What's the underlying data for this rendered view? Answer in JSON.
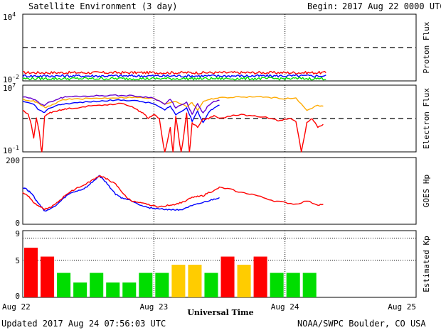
{
  "header": {
    "title": "Satellite Environment (3 day)",
    "begin_label": "Begin:",
    "begin_value": "2017 Aug 22 0000 UTC"
  },
  "footer": {
    "updated": "Updated 2017 Aug 24 07:56:03 UTC",
    "credit": "NOAA/SWPC Boulder, CO USA"
  },
  "colors": {
    "red": "#ff0000",
    "blue": "#0000ff",
    "green": "#00dd00",
    "orange": "#ffaa00",
    "purple": "#6600cc",
    "yellow": "#ffcc00"
  },
  "chart_data": {
    "type": "line",
    "xlabel": "Universal Time",
    "x_ticks": [
      "Aug 22",
      "Aug 23",
      "Aug 24",
      "Aug 25"
    ],
    "x_units": "hours since 2017 Aug 22 0000 UTC",
    "xlim": [
      0,
      72
    ],
    "panels": [
      {
        "name": "proton-flux",
        "ylabel": "Proton Flux",
        "scale": "log",
        "ylim_exp": [
          -2,
          4
        ],
        "y_ticks": [
          {
            "base": "10",
            "exp": "4"
          },
          {
            "base": "10",
            "exp": "-2"
          }
        ],
        "threshold": 10,
        "series": [
          {
            "color": "red",
            "level": 0.055,
            "noise": 0.12,
            "end": 55.5
          },
          {
            "color": "blue",
            "level": 0.028,
            "noise": 0.12,
            "end": 55.5
          },
          {
            "color": "green",
            "level": 0.016,
            "noise": 0.12,
            "end": 55.5
          }
        ]
      },
      {
        "name": "electron-flux",
        "ylabel": "Electron Flux",
        "scale": "log",
        "ylim_exp": [
          -1,
          7
        ],
        "y_ticks": [
          {
            "base": "10",
            "exp": "7"
          },
          {
            "base": "10",
            "exp": "-1"
          }
        ],
        "threshold": 1000,
        "series": [
          {
            "color": "orange",
            "x": [
              0,
              2,
              3,
              4,
              5,
              7,
              8,
              10,
              12,
              14,
              16,
              18,
              20,
              22,
              24,
              26,
              28,
              30,
              31,
              32,
              33,
              34,
              35,
              36,
              38,
              40,
              42,
              44,
              46,
              48,
              50,
              52,
              54,
              55
            ],
            "y": [
              200000,
              120000,
              60000,
              20000,
              30000,
              150000,
              200000,
              220000,
              250000,
              270000,
              300000,
              320000,
              350000,
              300000,
              250000,
              60000,
              120000,
              30000,
              80000,
              10000,
              100000,
              200000,
              250000,
              300000,
              350000,
              380000,
              400000,
              380000,
              300000,
              250000,
              260000,
              10000,
              40000,
              30000
            ]
          },
          {
            "color": "purple",
            "x": [
              0,
              2,
              3,
              4,
              5,
              7,
              8,
              10,
              12,
              14,
              16,
              18,
              20,
              22,
              24,
              26,
              27,
              28,
              30,
              31,
              32,
              33,
              34,
              35,
              36
            ],
            "y": [
              400000,
              200000,
              80000,
              40000,
              100000,
              300000,
              400000,
              450000,
              500000,
              550000,
              600000,
              580000,
              550000,
              400000,
              300000,
              50000,
              200000,
              20000,
              80000,
              3000,
              60000,
              4000,
              40000,
              100000,
              150000
            ]
          },
          {
            "color": "blue",
            "x": [
              0,
              2,
              3,
              4,
              5,
              7,
              8,
              10,
              12,
              14,
              16,
              18,
              20,
              22,
              24,
              26,
              27,
              28,
              30,
              31,
              32,
              33,
              34,
              35,
              36
            ],
            "y": [
              100000,
              50000,
              10000,
              5000,
              20000,
              50000,
              60000,
              80000,
              100000,
              120000,
              150000,
              160000,
              150000,
              100000,
              60000,
              10000,
              30000,
              3000,
              20000,
              500,
              8000,
              300,
              5000,
              20000,
              40000
            ]
          },
          {
            "color": "red",
            "x": [
              0,
              1,
              1.5,
              2,
              2.5,
              3,
              3.5,
              4,
              5,
              6,
              7,
              8,
              10,
              12,
              14,
              16,
              18,
              20,
              21,
              22,
              23,
              24,
              25,
              26,
              27,
              27.5,
              28,
              29,
              30,
              30.5,
              31,
              32,
              33,
              34,
              35,
              36,
              38,
              40,
              42,
              44,
              46,
              47,
              48,
              49,
              50,
              51,
              52,
              53,
              54,
              55
            ],
            "y": [
              10000,
              3000,
              300,
              5,
              1000,
              30,
              0.05,
              2000,
              5000,
              8000,
              10000,
              15000,
              20000,
              30000,
              40000,
              50000,
              60000,
              30000,
              10000,
              5000,
              1000,
              3000,
              1000,
              0.05,
              100,
              0.05,
              2000,
              0.05,
              5000,
              0.05,
              300,
              100,
              800,
              1000,
              2000,
              1000,
              2000,
              3000,
              2000,
              1500,
              1000,
              500,
              800,
              1000,
              500,
              0.08,
              300,
              1000,
              100,
              200
            ]
          }
        ]
      },
      {
        "name": "goes-hp",
        "ylabel": "GOES Hp",
        "scale": "linear",
        "ylim": [
          0,
          200
        ],
        "y_ticks": [
          "200",
          "0"
        ],
        "series": [
          {
            "color": "blue",
            "x": [
              0,
              0.5,
              1,
              1.5,
              2,
              2.5,
              3,
              3.5,
              4,
              5,
              6,
              7,
              8,
              9,
              10,
              11,
              12,
              13,
              14,
              15,
              16,
              17,
              18,
              19,
              20,
              21,
              22,
              23,
              24,
              25,
              26,
              27,
              28,
              29,
              30,
              31,
              32,
              33,
              34,
              35,
              36
            ],
            "y": [
              110,
              108,
              100,
              95,
              85,
              70,
              60,
              50,
              40,
              45,
              55,
              70,
              85,
              95,
              100,
              105,
              115,
              130,
              145,
              130,
              110,
              90,
              80,
              75,
              70,
              62,
              55,
              50,
              48,
              46,
              45,
              44,
              43,
              44,
              50,
              55,
              60,
              65,
              70,
              75,
              80
            ]
          },
          {
            "color": "red",
            "x": [
              0,
              0.5,
              1,
              1.5,
              2,
              2.5,
              3,
              3.5,
              4,
              5,
              6,
              7,
              8,
              9,
              10,
              11,
              12,
              13,
              14,
              15,
              16,
              17,
              18,
              19,
              20,
              21,
              22,
              23,
              24,
              25,
              26,
              27,
              28,
              29,
              30,
              31,
              32,
              33,
              34,
              35,
              36,
              38,
              40,
              42,
              44,
              46,
              48,
              50,
              52,
              54,
              55
            ],
            "y": [
              95,
              90,
              85,
              75,
              65,
              60,
              55,
              50,
              45,
              50,
              60,
              75,
              90,
              100,
              110,
              115,
              125,
              135,
              145,
              140,
              130,
              120,
              100,
              80,
              70,
              65,
              62,
              60,
              55,
              52,
              55,
              58,
              60,
              65,
              72,
              80,
              85,
              85,
              95,
              100,
              110,
              105,
              95,
              90,
              80,
              70,
              65,
              60,
              70,
              58,
              60
            ]
          }
        ]
      },
      {
        "name": "estimated-kp",
        "ylabel": "Estimated Kp",
        "type": "bar",
        "scale": "linear",
        "ylim": [
          0,
          9
        ],
        "y_ticks": [
          "9",
          "5",
          "0"
        ],
        "dotted_levels": [
          9,
          8,
          5
        ],
        "bin_hours": 3,
        "values": [
          6.7,
          5.5,
          3.3,
          2.0,
          3.3,
          2.0,
          2.0,
          3.3,
          3.3,
          4.4,
          4.4,
          3.3,
          5.5,
          4.4,
          5.5,
          3.3,
          3.3,
          3.3
        ],
        "colors": [
          "red",
          "red",
          "green",
          "green",
          "green",
          "green",
          "green",
          "green",
          "green",
          "yellow",
          "yellow",
          "green",
          "red",
          "yellow",
          "red",
          "green",
          "green",
          "green"
        ]
      }
    ]
  }
}
